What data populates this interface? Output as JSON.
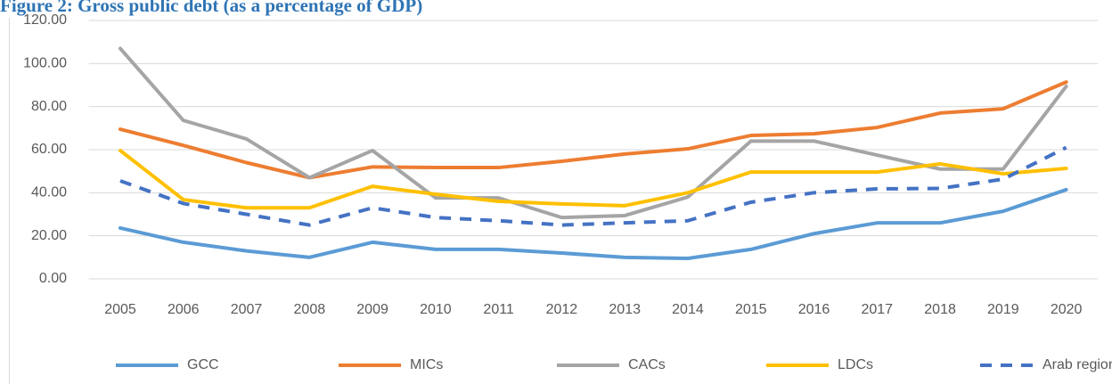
{
  "chart_data": {
    "type": "line",
    "title": "Figure 2: Gross public debt (as a percentage of GDP)",
    "categories": [
      "2005",
      "2006",
      "2007",
      "2008",
      "2009",
      "2010",
      "2011",
      "2012",
      "2013",
      "2014",
      "2015",
      "2016",
      "2017",
      "2018",
      "2019",
      "2020"
    ],
    "series": [
      {
        "name": "GCC",
        "color": "#5b9bd5",
        "style": "solid",
        "values": [
          23.6,
          17,
          13,
          10,
          17,
          13.7,
          13.7,
          12,
          10,
          9.5,
          13.7,
          21,
          26,
          26,
          31.4,
          41.4
        ]
      },
      {
        "name": "MICs",
        "color": "#ed7d31",
        "style": "solid",
        "values": [
          69.5,
          62,
          54,
          47,
          52,
          51.7,
          51.7,
          54.6,
          58,
          60.4,
          66.6,
          67.4,
          70.3,
          77,
          79,
          91.4
        ]
      },
      {
        "name": "CACs",
        "color": "#a5a5a5",
        "style": "solid",
        "values": [
          107,
          73.6,
          65,
          47,
          59.6,
          37.6,
          37.6,
          28.5,
          29.4,
          38,
          64,
          64,
          57.5,
          51,
          51,
          89.4
        ]
      },
      {
        "name": "LDCs",
        "color": "#ffc000",
        "style": "solid",
        "values": [
          59.6,
          36.8,
          33,
          33,
          43,
          39.3,
          36,
          34.8,
          34,
          40,
          49.6,
          49.6,
          49.6,
          53.4,
          48.8,
          51.3
        ]
      },
      {
        "name": "Arab region",
        "color": "#4472c4",
        "style": "dashed",
        "values": [
          45.5,
          35,
          30,
          25,
          33,
          28.5,
          27,
          25,
          26,
          27,
          35.6,
          40,
          41.8,
          42,
          46.3,
          61
        ]
      }
    ],
    "ylim": [
      0,
      120
    ],
    "yticks": [
      {
        "value": 0,
        "label": "0.00"
      },
      {
        "value": 20,
        "label": "20.00"
      },
      {
        "value": 40,
        "label": "40.00"
      },
      {
        "value": 60,
        "label": "60.00"
      },
      {
        "value": 80,
        "label": "80.00"
      },
      {
        "value": 100,
        "label": "100.00"
      },
      {
        "value": 120,
        "label": "120.00"
      }
    ],
    "grid": true,
    "legend": "bottom"
  }
}
